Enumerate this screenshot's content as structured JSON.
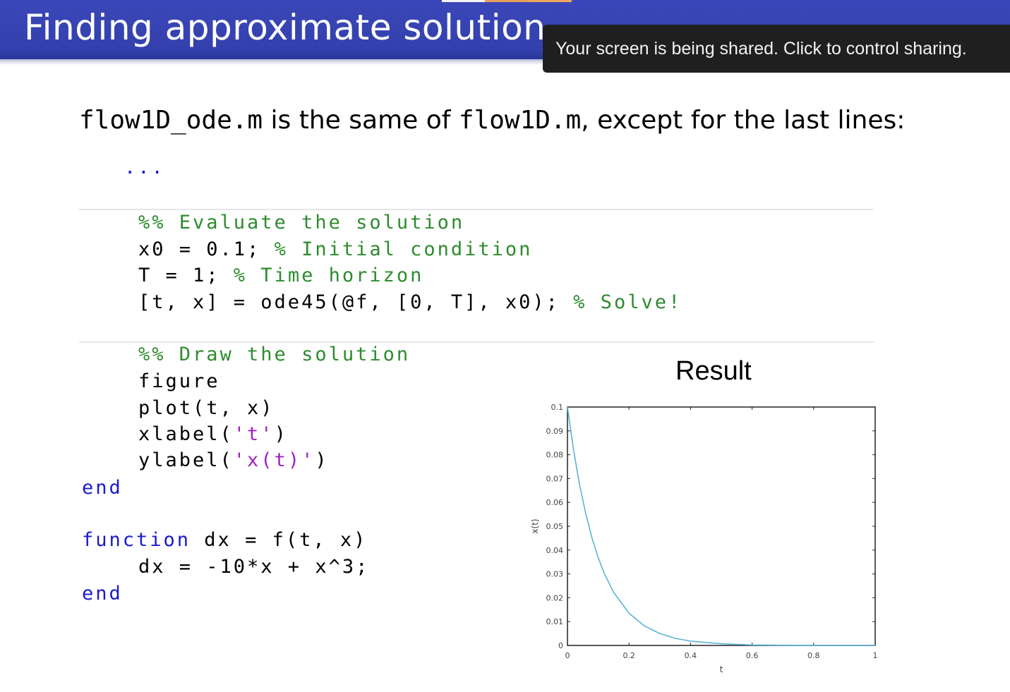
{
  "slide": {
    "title": "Finding approximate solution",
    "top_strip_colors": [
      "#f5f5f5",
      "#e8a05c",
      "#f0a860"
    ]
  },
  "share_banner": {
    "text": "Your screen is being shared. Click to control sharing."
  },
  "intro": {
    "file1": "flow1D_ode.m",
    "middle": " is the same of ",
    "file2": "flow1D.m",
    "tail": ", except for the last lines:"
  },
  "code": {
    "ellipsis": "...",
    "lines": [
      {
        "parts": [
          {
            "t": "%% Evaluate the solution",
            "c": "cmt"
          }
        ]
      },
      {
        "parts": [
          {
            "t": "x0 = 0.1; ",
            "c": ""
          },
          {
            "t": "% Initial condition",
            "c": "cmt"
          }
        ]
      },
      {
        "parts": [
          {
            "t": "T = 1; ",
            "c": ""
          },
          {
            "t": "% Time horizon",
            "c": "cmt"
          }
        ]
      },
      {
        "parts": [
          {
            "t": "[t, x] = ode45(@f, [0, T], x0); ",
            "c": ""
          },
          {
            "t": "% Solve!",
            "c": "cmt"
          }
        ]
      },
      {
        "parts": [
          {
            "t": "%% Draw the solution",
            "c": "cmt"
          }
        ]
      },
      {
        "parts": [
          {
            "t": "figure",
            "c": ""
          }
        ]
      },
      {
        "parts": [
          {
            "t": "plot(t, x)",
            "c": ""
          }
        ]
      },
      {
        "parts": [
          {
            "t": "xlabel(",
            "c": ""
          },
          {
            "t": "'t'",
            "c": "str"
          },
          {
            "t": ")",
            "c": ""
          }
        ]
      },
      {
        "parts": [
          {
            "t": "ylabel(",
            "c": ""
          },
          {
            "t": "'x(t)'",
            "c": "str"
          },
          {
            "t": ")",
            "c": ""
          }
        ]
      },
      {
        "parts": [
          {
            "t": "end",
            "c": "kw"
          }
        ]
      },
      {
        "parts": [
          {
            "t": "function",
            "c": "kw"
          },
          {
            "t": " dx = f(t, x)",
            "c": ""
          }
        ]
      },
      {
        "parts": [
          {
            "t": "dx = -10*x + x^3;",
            "c": ""
          }
        ]
      },
      {
        "parts": [
          {
            "t": "end",
            "c": "kw"
          }
        ]
      }
    ]
  },
  "result": {
    "title": "Result"
  },
  "chart_data": {
    "type": "line",
    "title": "",
    "xlabel": "t",
    "ylabel": "x(t)",
    "xlim": [
      0,
      1
    ],
    "ylim": [
      0,
      0.1
    ],
    "xticks": [
      "0",
      "0.2",
      "0.4",
      "0.6",
      "0.8",
      "1"
    ],
    "yticks": [
      "0",
      "0.01",
      "0.02",
      "0.03",
      "0.04",
      "0.05",
      "0.06",
      "0.07",
      "0.08",
      "0.09",
      "0.1"
    ],
    "grid": false,
    "line_color": "#5ab4d6",
    "series": [
      {
        "x": [
          0,
          0.02,
          0.04,
          0.06,
          0.08,
          0.1,
          0.12,
          0.15,
          0.2,
          0.25,
          0.3,
          0.35,
          0.4,
          0.5,
          0.6,
          0.7,
          0.8,
          0.9,
          1.0
        ],
        "values": [
          0.1,
          0.0819,
          0.067,
          0.0549,
          0.0449,
          0.0368,
          0.0301,
          0.0223,
          0.0135,
          0.0082,
          0.005,
          0.003,
          0.0018,
          0.0007,
          0.0002,
          0.0001,
          0.0,
          0.0,
          0.0
        ]
      }
    ]
  }
}
